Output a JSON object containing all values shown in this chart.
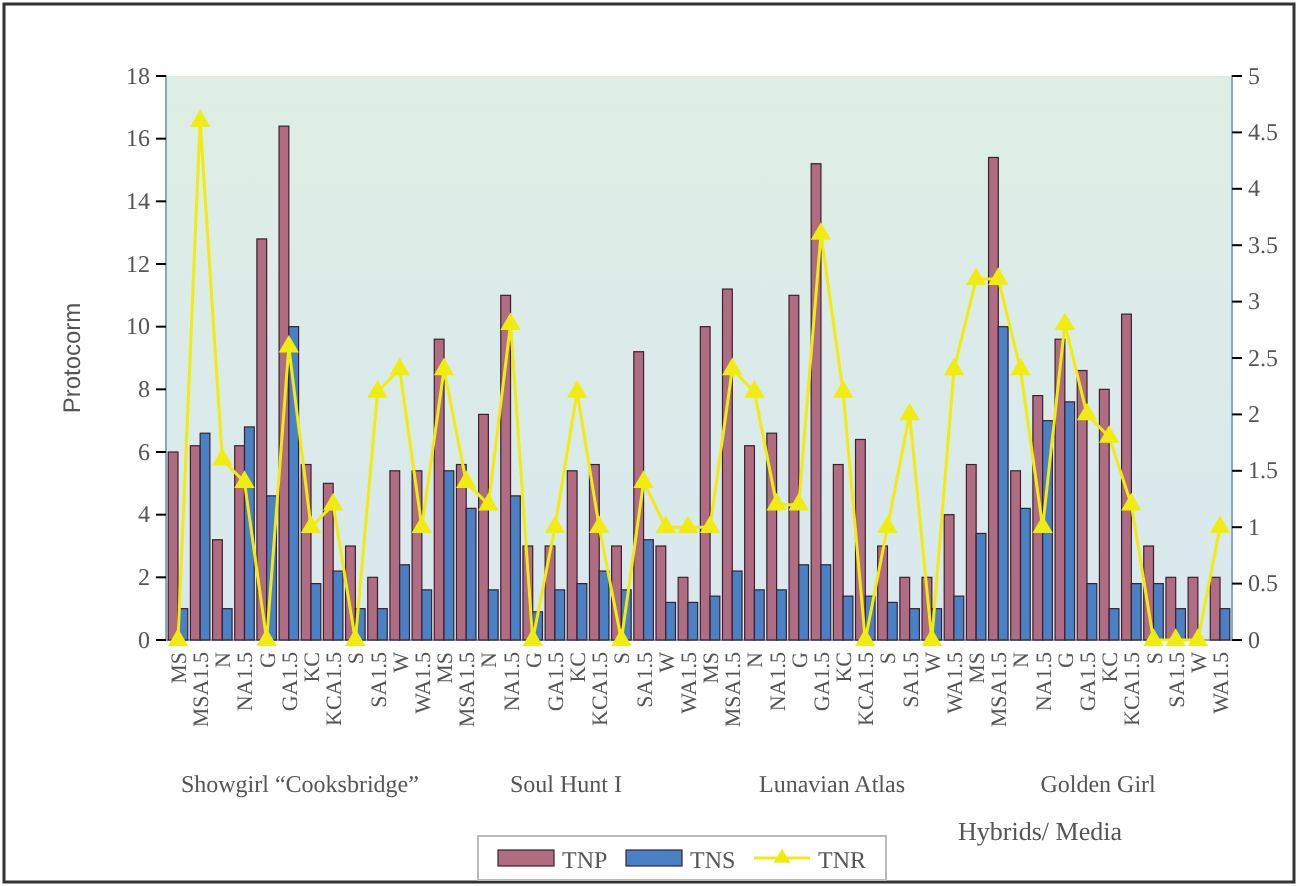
{
  "chart_data": {
    "type": "bar",
    "ylabel": "Protocorm",
    "xlabel": "Hybrids/ Media",
    "categories": [
      "MS",
      "MSA1.5",
      "N",
      "NA1.5",
      "G",
      "GA1.5",
      "KC",
      "KCA1.5",
      "S",
      "SA1.5",
      "W",
      "WA1.5",
      "MS",
      "MSA1.5",
      "N",
      "NA1.5",
      "G",
      "GA1.5",
      "KC",
      "KCA1.5",
      "S",
      "SA1.5",
      "W",
      "WA1.5",
      "MS",
      "MSA1.5",
      "N",
      "NA1.5",
      "G",
      "GA1.5",
      "KC",
      "KCA1.5",
      "S",
      "SA1.5",
      "W",
      "WA1.5",
      "MS",
      "MSA1.5",
      "N",
      "NA1.5",
      "G",
      "GA1.5",
      "KC",
      "KCA1.5",
      "S",
      "SA1.5",
      "W",
      "WA1.5"
    ],
    "series": [
      {
        "name": "TNP",
        "color": "#b06c80",
        "values": [
          6.0,
          6.2,
          3.2,
          6.2,
          12.8,
          16.4,
          5.6,
          5.0,
          3.0,
          2.0,
          5.4,
          5.4,
          9.6,
          5.6,
          7.2,
          11.0,
          3.0,
          3.0,
          5.4,
          5.6,
          3.0,
          9.2,
          3.0,
          2.0,
          10.0,
          11.2,
          6.2,
          6.6,
          11.0,
          15.2,
          5.6,
          6.4,
          3.0,
          2.0,
          2.0,
          4.0,
          5.6,
          15.4,
          5.4,
          7.8,
          9.6,
          8.6,
          8.0,
          10.4,
          3.0,
          2.0,
          2.0,
          2.0
        ]
      },
      {
        "name": "TNS",
        "color": "#4a80c4",
        "values": [
          1.0,
          6.6,
          1.0,
          6.8,
          4.6,
          10.0,
          1.8,
          2.2,
          1.0,
          1.0,
          2.4,
          1.6,
          5.4,
          4.2,
          1.6,
          4.6,
          0.9,
          1.6,
          1.8,
          2.2,
          1.6,
          3.2,
          1.2,
          1.2,
          1.4,
          2.2,
          1.6,
          1.6,
          2.4,
          2.4,
          1.4,
          1.4,
          1.2,
          1.0,
          1.0,
          1.4,
          3.4,
          10.0,
          4.2,
          7.0,
          7.6,
          1.8,
          1.0,
          1.8,
          1.8,
          1.0,
          0,
          1.0
        ]
      },
      {
        "name": "TNR",
        "type": "line",
        "axis": "y2",
        "color": "#f0ec10",
        "values": [
          0,
          4.6,
          1.6,
          1.4,
          0,
          2.6,
          1.0,
          1.2,
          0,
          2.2,
          2.4,
          1.0,
          2.4,
          1.4,
          1.2,
          2.8,
          0,
          1.0,
          2.2,
          1.0,
          0,
          1.4,
          1.0,
          1.0,
          1.0,
          2.4,
          2.2,
          1.2,
          1.2,
          3.6,
          2.2,
          0,
          1.0,
          2.0,
          0,
          2.4,
          3.2,
          3.2,
          2.4,
          1.0,
          2.8,
          2.0,
          1.8,
          1.2,
          0,
          0,
          0,
          1.0
        ]
      }
    ],
    "ylim": [
      0,
      18
    ],
    "yticks": [
      0,
      2,
      4,
      6,
      8,
      10,
      12,
      14,
      16,
      18
    ],
    "y2lim": [
      0,
      5
    ],
    "y2ticks": [
      0,
      0.5,
      1,
      1.5,
      2,
      2.5,
      3,
      3.5,
      4,
      4.5,
      5
    ],
    "marker": "triangle",
    "grid": false,
    "legend": "bottom",
    "annotations": [
      "Showgirl “Cooksbridge”",
      "Soul Hunt I",
      "Lunavian Atlas",
      "Golden Girl"
    ]
  }
}
